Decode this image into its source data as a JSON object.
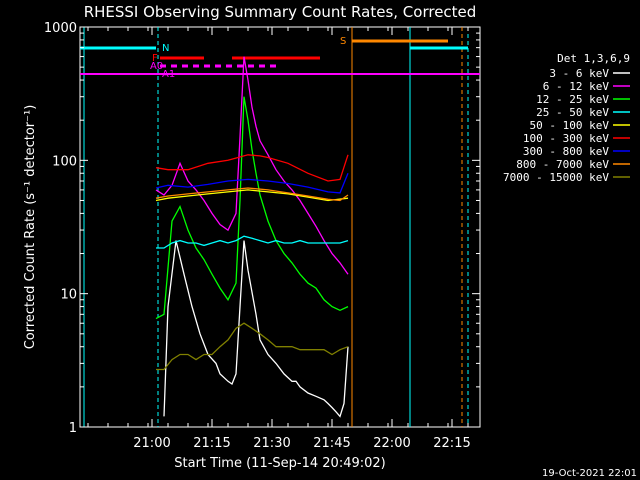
{
  "chart_data": {
    "type": "line",
    "title": "RHESSI Observing Summary Count Rates, Corrected",
    "xlabel": "Start Time (11-Sep-14 20:49:02)",
    "ylabel": "Corrected Count Rate (s⁻¹ detector⁻¹)",
    "yscale": "log",
    "ylim": [
      1,
      1000
    ],
    "xlim_minutes": [
      -7,
      93
    ],
    "x_ticks": [
      {
        "label": "21:00",
        "min": 11
      },
      {
        "label": "21:15",
        "min": 26
      },
      {
        "label": "21:30",
        "min": 41
      },
      {
        "label": "21:45",
        "min": 56
      },
      {
        "label": "22:00",
        "min": 71
      },
      {
        "label": "22:15",
        "min": 86
      }
    ],
    "y_ticks": [
      {
        "label": "1",
        "value": 1
      },
      {
        "label": "10",
        "value": 10
      },
      {
        "label": "100",
        "value": 100
      },
      {
        "label": "1000",
        "value": 1000
      }
    ],
    "legend_title": "Det 1,3,6,9",
    "legend_position": "right",
    "series": [
      {
        "name": "3 - 6 keV",
        "color": "#ffffff",
        "x": [
          14,
          15,
          17,
          19,
          21,
          23,
          25,
          27,
          28,
          30,
          31,
          32,
          33,
          34,
          35,
          37,
          38,
          40,
          42,
          44,
          46,
          47,
          48,
          50,
          52,
          54,
          55,
          56,
          57,
          58,
          59,
          60
        ],
        "y": [
          1.2,
          8,
          25,
          14,
          8,
          5,
          3.5,
          3,
          2.5,
          2.2,
          2.1,
          2.5,
          8,
          25,
          15,
          7,
          4.5,
          3.5,
          3,
          2.5,
          2.2,
          2.2,
          2,
          1.8,
          1.7,
          1.6,
          1.5,
          1.4,
          1.3,
          1.2,
          1.5,
          4
        ]
      },
      {
        "name": "6 - 12 keV",
        "color": "#ff00ff",
        "x": [
          12,
          14,
          16,
          18,
          20,
          22,
          24,
          26,
          28,
          30,
          32,
          33,
          34,
          35,
          36,
          37,
          38,
          40,
          42,
          44,
          46,
          48,
          50,
          52,
          54,
          56,
          58,
          60
        ],
        "y": [
          60,
          55,
          65,
          95,
          70,
          60,
          50,
          40,
          33,
          30,
          40,
          150,
          600,
          400,
          250,
          180,
          140,
          110,
          85,
          70,
          60,
          50,
          40,
          32,
          25,
          20,
          17,
          14
        ]
      },
      {
        "name": "12 - 25 keV",
        "color": "#00ff00",
        "x": [
          12,
          14,
          16,
          18,
          20,
          22,
          24,
          26,
          28,
          30,
          32,
          33,
          34,
          35,
          36,
          37,
          38,
          40,
          42,
          44,
          46,
          48,
          50,
          52,
          54,
          56,
          58,
          60
        ],
        "y": [
          6.5,
          7,
          35,
          45,
          30,
          22,
          18,
          14,
          11,
          9,
          12,
          50,
          300,
          200,
          120,
          80,
          55,
          35,
          25,
          20,
          17,
          14,
          12,
          11,
          9,
          8,
          7.5,
          8
        ]
      },
      {
        "name": "25 - 50 keV",
        "color": "#00ffff",
        "x": [
          12,
          14,
          16,
          18,
          20,
          22,
          24,
          26,
          28,
          30,
          32,
          34,
          36,
          38,
          40,
          42,
          44,
          46,
          48,
          50,
          52,
          54,
          56,
          58,
          60
        ],
        "y": [
          22,
          22,
          24,
          25,
          24,
          24,
          23,
          24,
          25,
          24,
          25,
          27,
          26,
          25,
          24,
          25,
          24,
          24,
          25,
          24,
          24,
          24,
          24,
          24,
          25
        ]
      },
      {
        "name": "50 - 100 keV",
        "color": "#ffff00",
        "x": [
          12,
          15,
          20,
          25,
          30,
          35,
          40,
          45,
          50,
          55,
          60
        ],
        "y": [
          50,
          52,
          54,
          56,
          58,
          60,
          58,
          56,
          53,
          50,
          52
        ]
      },
      {
        "name": "100 - 300 keV",
        "color": "#ff0000",
        "x": [
          12,
          15,
          20,
          25,
          30,
          35,
          38,
          40,
          45,
          50,
          55,
          58,
          60
        ],
        "y": [
          88,
          85,
          85,
          95,
          100,
          110,
          108,
          105,
          95,
          80,
          70,
          72,
          110
        ]
      },
      {
        "name": "300 - 800 keV",
        "color": "#0000ff",
        "x": [
          12,
          15,
          20,
          25,
          30,
          35,
          40,
          45,
          50,
          55,
          58,
          60
        ],
        "y": [
          62,
          65,
          63,
          66,
          70,
          72,
          70,
          67,
          63,
          58,
          57,
          80
        ]
      },
      {
        "name": "800 - 7000 keV",
        "color": "#ff8800",
        "x": [
          12,
          15,
          20,
          25,
          30,
          35,
          40,
          45,
          50,
          55,
          58,
          60
        ],
        "y": [
          52,
          54,
          56,
          58,
          60,
          62,
          60,
          57,
          54,
          51,
          50,
          55
        ]
      },
      {
        "name": "7000 - 15000 keV",
        "color": "#808000",
        "x": [
          12,
          14,
          16,
          18,
          20,
          22,
          24,
          26,
          28,
          30,
          32,
          34,
          36,
          38,
          40,
          42,
          44,
          46,
          48,
          50,
          52,
          54,
          56,
          58,
          60
        ],
        "y": [
          2.7,
          2.7,
          3.2,
          3.5,
          3.5,
          3.2,
          3.5,
          3.5,
          4,
          4.5,
          5.5,
          6,
          5.5,
          5,
          4.5,
          4,
          4,
          4,
          3.8,
          3.8,
          3.8,
          3.8,
          3.5,
          3.8,
          4
        ]
      }
    ],
    "annotations": [
      {
        "label": "N",
        "color": "#00ffff"
      },
      {
        "label": "F",
        "color": "#ff0000"
      },
      {
        "label": "A0",
        "color": "#ff00ff"
      },
      {
        "label": "A1",
        "color": "#ff00ff"
      },
      {
        "label": "S",
        "color": "#ff8800"
      }
    ],
    "grid": false
  },
  "footer_timestamp": "19-Oct-2021 22:01"
}
